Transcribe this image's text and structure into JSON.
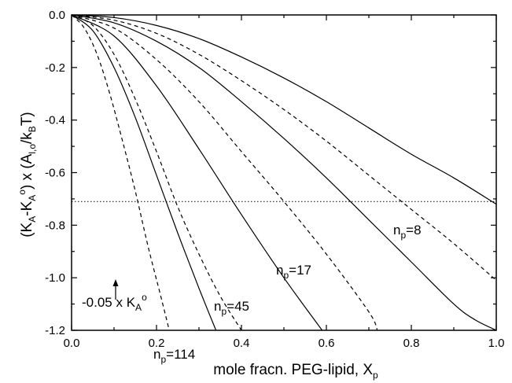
{
  "chart_data": {
    "type": "line",
    "xlim": [
      0.0,
      1.0
    ],
    "ylim": [
      -1.2,
      0.0
    ],
    "x_ticks": [
      {
        "value": 0.0,
        "label": "0.0"
      },
      {
        "value": 0.2,
        "label": "0.2"
      },
      {
        "value": 0.4,
        "label": "0.4"
      },
      {
        "value": 0.6,
        "label": "0.6"
      },
      {
        "value": 0.8,
        "label": "0.8"
      },
      {
        "value": 1.0,
        "label": "1.0"
      }
    ],
    "y_ticks": [
      {
        "value": 0.0,
        "label": "0.0"
      },
      {
        "value": -0.2,
        "label": "-0.2"
      },
      {
        "value": -0.4,
        "label": "-0.4"
      },
      {
        "value": -0.6,
        "label": "-0.6"
      },
      {
        "value": -0.8,
        "label": "-0.8"
      },
      {
        "value": -1.0,
        "label": "-1.0"
      },
      {
        "value": -1.2,
        "label": "-1.2"
      }
    ],
    "xlabel": {
      "main": "mole fracn. PEG-lipid, X",
      "sub": "p"
    },
    "ylabel": {
      "p1": "(K",
      "s1": "A",
      "p2": "-K",
      "s2": "A",
      "sup": "o",
      "p3": ") x (A",
      "s3": "l,o",
      "p4": "/k",
      "s4": "B",
      "p5": "T)"
    },
    "grid": false,
    "reference_line": {
      "y": -0.71,
      "style": "dotted"
    },
    "series": [
      {
        "name": "n_p=8",
        "style": "solid",
        "x": [
          0.0,
          0.1,
          0.2,
          0.3,
          0.4,
          0.5,
          0.6,
          0.7,
          0.8,
          0.9,
          1.0
        ],
        "y": [
          0.0,
          -0.01,
          -0.04,
          -0.09,
          -0.16,
          -0.24,
          -0.33,
          -0.43,
          -0.53,
          -0.62,
          -0.72
        ]
      },
      {
        "name": "n_p=8",
        "style": "dashed",
        "x": [
          0.0,
          0.1,
          0.2,
          0.3,
          0.4,
          0.5,
          0.6,
          0.7,
          0.8,
          0.9,
          1.0
        ],
        "y": [
          0.0,
          -0.02,
          -0.07,
          -0.15,
          -0.25,
          -0.36,
          -0.48,
          -0.61,
          -0.74,
          -0.87,
          -1.01
        ]
      },
      {
        "name": "n_p=17",
        "style": "solid",
        "x": [
          0.0,
          0.1,
          0.2,
          0.3,
          0.4,
          0.5,
          0.6,
          0.7,
          0.8,
          0.9,
          0.95,
          1.0
        ],
        "y": [
          0.0,
          -0.03,
          -0.1,
          -0.2,
          -0.33,
          -0.47,
          -0.62,
          -0.78,
          -0.94,
          -1.1,
          -1.16,
          -1.2
        ]
      },
      {
        "name": "n_p=17",
        "style": "dashed",
        "x": [
          0.0,
          0.1,
          0.2,
          0.3,
          0.4,
          0.5,
          0.6,
          0.7,
          0.72
        ],
        "y": [
          0.0,
          -0.05,
          -0.17,
          -0.33,
          -0.52,
          -0.71,
          -0.91,
          -1.13,
          -1.2
        ]
      },
      {
        "name": "n_p=45",
        "style": "solid",
        "x": [
          0.0,
          0.1,
          0.2,
          0.3,
          0.4,
          0.5,
          0.59
        ],
        "y": [
          0.0,
          -0.08,
          -0.27,
          -0.51,
          -0.76,
          -1.0,
          -1.2
        ]
      },
      {
        "name": "n_p=45",
        "style": "dashed",
        "x": [
          0.0,
          0.05,
          0.1,
          0.15,
          0.2,
          0.25,
          0.3,
          0.35,
          0.4
        ],
        "y": [
          0.0,
          -0.04,
          -0.15,
          -0.32,
          -0.52,
          -0.73,
          -0.91,
          -1.07,
          -1.2
        ]
      },
      {
        "name": "n_p=114",
        "style": "solid",
        "x": [
          0.0,
          0.05,
          0.1,
          0.15,
          0.2,
          0.25,
          0.3,
          0.34
        ],
        "y": [
          0.0,
          -0.06,
          -0.2,
          -0.39,
          -0.61,
          -0.83,
          -1.04,
          -1.2
        ]
      },
      {
        "name": "n_p=114",
        "style": "dashed",
        "x": [
          0.0,
          0.03,
          0.06,
          0.09,
          0.12,
          0.15,
          0.18,
          0.21,
          0.23
        ],
        "y": [
          0.0,
          -0.05,
          -0.15,
          -0.3,
          -0.48,
          -0.67,
          -0.88,
          -1.07,
          -1.2
        ]
      }
    ],
    "annotations": {
      "np8": {
        "pre": "n",
        "sub": "p",
        "post": "=8"
      },
      "np17": {
        "pre": "n",
        "sub": "p",
        "post": "=17"
      },
      "np45": {
        "pre": "n",
        "sub": "p",
        "post": "=45"
      },
      "np114": {
        "pre": "n",
        "sub": "p",
        "post": "=114"
      },
      "ka": {
        "pre": "-0.05 x K",
        "sub": "A",
        "sup": "o"
      }
    }
  }
}
